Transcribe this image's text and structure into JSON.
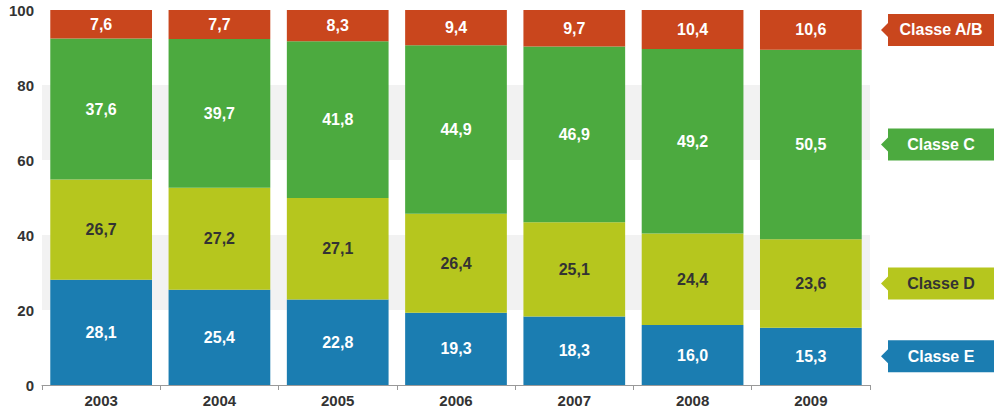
{
  "chart_data": {
    "type": "bar",
    "stacked": true,
    "data_labels": true,
    "grid": true,
    "legend": "right",
    "categories": [
      "2003",
      "2004",
      "2005",
      "2006",
      "2007",
      "2008",
      "2009"
    ],
    "series": [
      {
        "name": "Classe E",
        "color": "#1b7db1",
        "values": [
          28.1,
          25.4,
          22.8,
          19.3,
          18.3,
          16.0,
          15.3
        ],
        "value_labels": [
          "28,1",
          "25,4",
          "22,8",
          "19,3",
          "18,3",
          "16,0",
          "15,3"
        ]
      },
      {
        "name": "Classe D",
        "color": "#b6c61e",
        "values": [
          26.7,
          27.2,
          27.1,
          26.4,
          25.1,
          24.4,
          23.6
        ],
        "value_labels": [
          "26,7",
          "27,2",
          "27,1",
          "26,4",
          "25,1",
          "24,4",
          "23,6"
        ]
      },
      {
        "name": "Classe C",
        "color": "#4caa3f",
        "values": [
          37.6,
          39.7,
          41.8,
          44.9,
          46.9,
          49.2,
          50.5
        ],
        "value_labels": [
          "37,6",
          "39,7",
          "41,8",
          "44,9",
          "46,9",
          "49,2",
          "50,5"
        ]
      },
      {
        "name": "Classe A/B",
        "color": "#c9461d",
        "values": [
          7.6,
          7.7,
          8.3,
          9.4,
          9.7,
          10.4,
          10.6
        ],
        "value_labels": [
          "7,6",
          "7,7",
          "8,3",
          "9,4",
          "9,7",
          "10,4",
          "10,6"
        ]
      }
    ],
    "ylim": [
      0,
      100
    ],
    "yticks": [
      0,
      20,
      40,
      60,
      80,
      100
    ]
  }
}
